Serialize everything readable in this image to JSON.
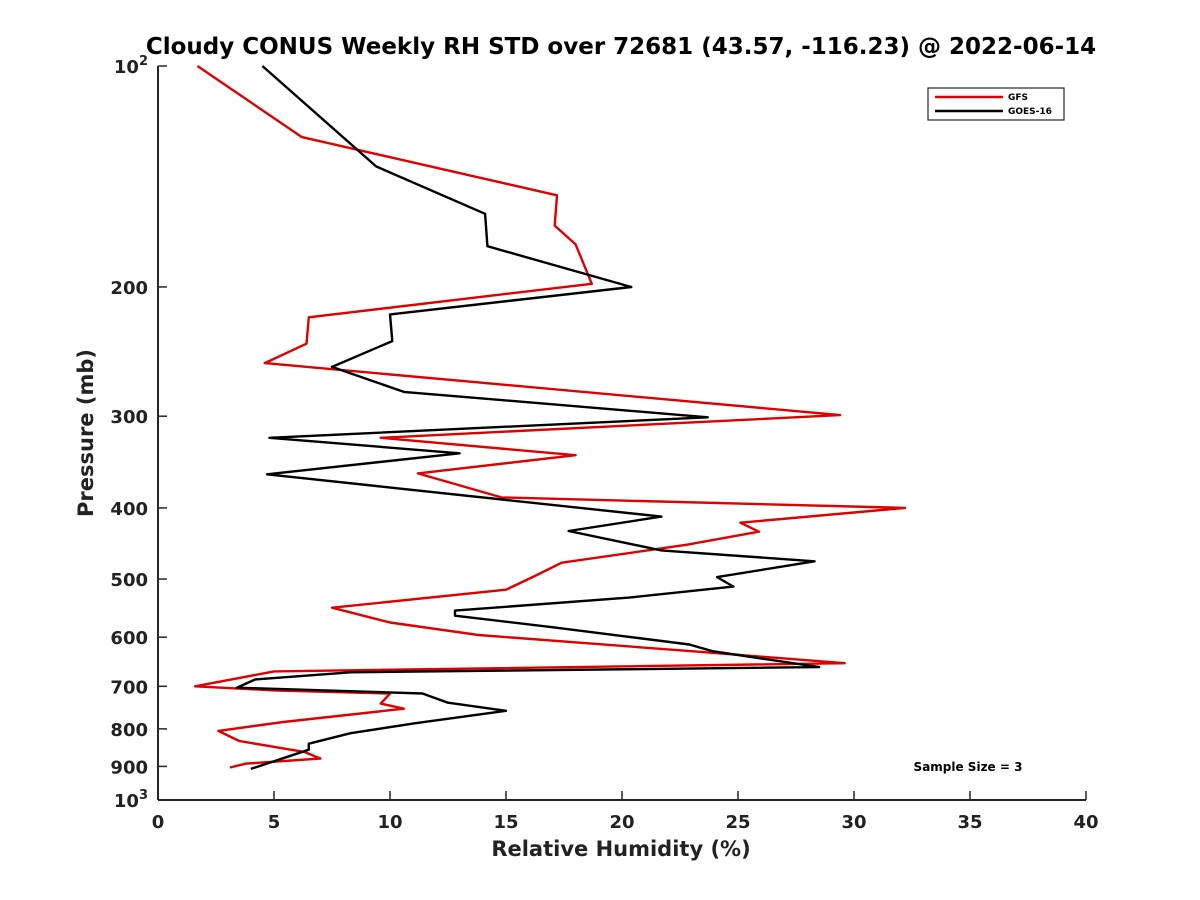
{
  "chart_data": {
    "type": "line",
    "title": "Cloudy CONUS Weekly RH STD over 72681 (43.57, -116.23) @ 2022-06-14",
    "xlabel": "Relative Humidity (%)",
    "ylabel": "Pressure (mb)",
    "xlim": [
      0,
      40
    ],
    "ylim": [
      100,
      1000
    ],
    "y_scale": "log",
    "y_reversed": true,
    "grid": false,
    "legend_position": "top-right",
    "x_ticks": [
      "0",
      "5",
      "10",
      "15",
      "20",
      "25",
      "30",
      "35",
      "40"
    ],
    "y_ticks": [
      {
        "value": 100,
        "base": "10",
        "exp": "2"
      },
      {
        "value": 200,
        "label": "200"
      },
      {
        "value": 300,
        "label": "300"
      },
      {
        "value": 400,
        "label": "400"
      },
      {
        "value": 500,
        "label": "500"
      },
      {
        "value": 600,
        "label": "600"
      },
      {
        "value": 700,
        "label": "700"
      },
      {
        "value": 800,
        "label": "800"
      },
      {
        "value": 900,
        "label": "900"
      },
      {
        "value": 1000,
        "base": "10",
        "exp": "3"
      }
    ],
    "annotation": "Sample Size = 3",
    "series": [
      {
        "name": "GFS",
        "color": "#e00000",
        "x": [
          1.7,
          6.2,
          17.2,
          17.1,
          18.0,
          18.7,
          6.5,
          6.4,
          4.6,
          29.4,
          9.6,
          18.0,
          11.2,
          14.8,
          32.2,
          25.1,
          25.9,
          22.8,
          17.4,
          16.2,
          15.0,
          7.5,
          10.0,
          13.8,
          23.0,
          29.6,
          5.0,
          1.6,
          5.0,
          10.0,
          9.6,
          10.6,
          5.4,
          2.6,
          3.5,
          6.3,
          7.0,
          3.8,
          3.1
        ],
        "y": [
          100,
          125,
          150,
          165,
          175,
          198,
          220,
          239,
          254,
          299,
          321,
          339,
          359,
          387,
          400,
          419,
          431,
          449,
          475,
          496,
          517,
          547,
          573,
          596,
          627,
          651,
          668,
          700,
          709,
          716,
          739,
          751,
          783,
          805,
          831,
          860,
          878,
          892,
          903
        ]
      },
      {
        "name": "GOES-16",
        "color": "#000000",
        "x": [
          4.5,
          9.4,
          14.1,
          14.2,
          20.4,
          10.0,
          10.1,
          7.5,
          10.6,
          23.7,
          4.8,
          13.0,
          4.7,
          21.7,
          17.7,
          21.7,
          28.3,
          24.1,
          24.8,
          20.3,
          12.8,
          12.8,
          16.9,
          22.9,
          23.9,
          28.5,
          8.3,
          4.2,
          3.4,
          11.4,
          12.5,
          15.0,
          11.1,
          8.3,
          6.5,
          6.5,
          5.4,
          4.0
        ],
        "y": [
          100,
          137,
          159,
          176,
          200,
          218,
          237,
          257,
          278,
          301,
          321,
          337,
          360,
          411,
          430,
          457,
          473,
          497,
          512,
          530,
          552,
          561,
          581,
          614,
          627,
          659,
          670,
          685,
          703,
          716,
          737,
          756,
          786,
          811,
          838,
          854,
          877,
          907
        ]
      }
    ]
  }
}
